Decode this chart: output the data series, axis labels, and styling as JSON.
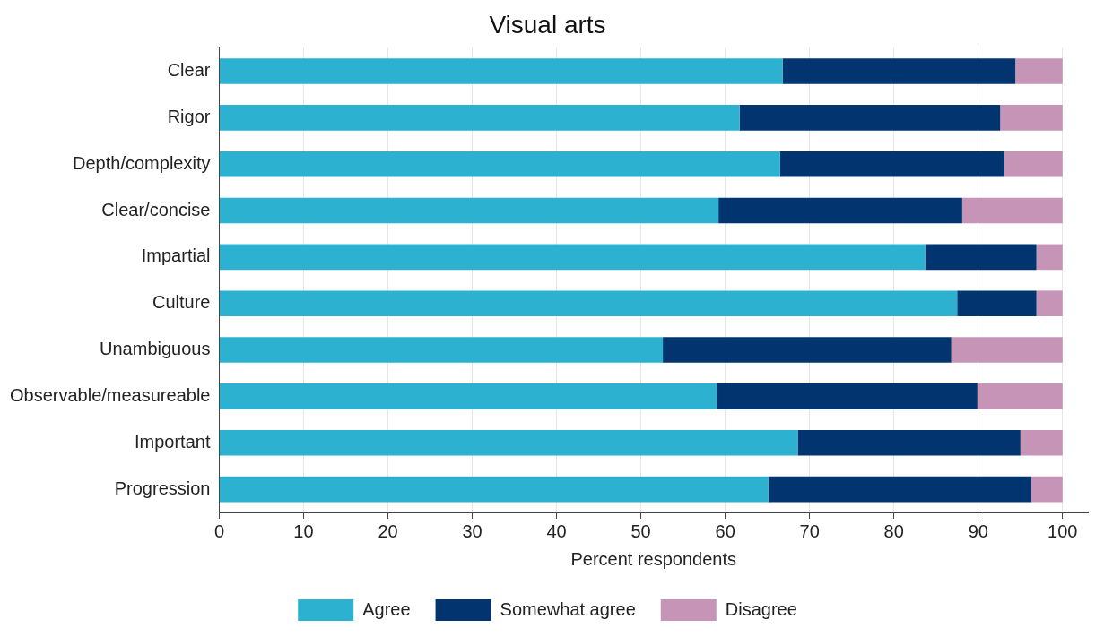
{
  "chart_data": {
    "type": "bar",
    "orientation": "horizontal",
    "stacked": true,
    "title": "Visual arts",
    "xlabel": "Percent respondents",
    "categories": [
      "Clear",
      "Rigor",
      "Depth/complexity",
      "Clear/concise",
      "Impartial",
      "Culture",
      "Unambiguous",
      "Observable/measureable",
      "Important",
      "Progression"
    ],
    "series": [
      {
        "name": "Agree",
        "color": "#2cb1d1",
        "values": [
          66.8,
          61.7,
          66.5,
          59.2,
          83.7,
          87.5,
          52.6,
          59.0,
          68.6,
          65.1
        ]
      },
      {
        "name": "Somewhat agree",
        "color": "#023570",
        "values": [
          27.6,
          30.9,
          26.6,
          28.9,
          13.2,
          9.4,
          34.2,
          30.9,
          26.4,
          31.2
        ]
      },
      {
        "name": "Disagree",
        "color": "#c594b7",
        "values": [
          5.6,
          7.4,
          6.9,
          11.9,
          3.1,
          3.1,
          13.2,
          10.1,
          5.0,
          3.7
        ]
      }
    ],
    "xlim": [
      0,
      103
    ],
    "xticks": [
      0,
      10,
      20,
      30,
      40,
      50,
      60,
      70,
      80,
      90,
      100
    ],
    "grid": "x",
    "legend": "bottom"
  }
}
